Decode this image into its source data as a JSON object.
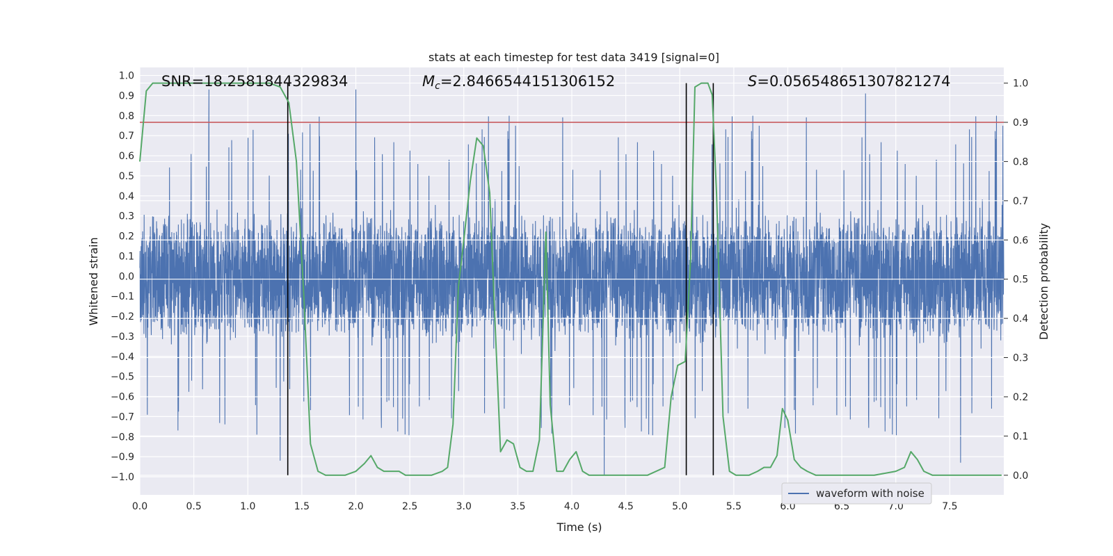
{
  "chart_data": {
    "type": "line",
    "title": "stats at each timestep for test data 3419 [signal=0]",
    "xlabel": "Time (s)",
    "ylabel": "Whitened strain",
    "y2label": "Detection probability",
    "xlim": [
      0.0,
      8.0
    ],
    "ylim": [
      -1.09,
      1.04
    ],
    "y2lim": [
      -0.05,
      1.04
    ],
    "xticks": [
      "0.0",
      "0.5",
      "1.0",
      "1.5",
      "2.0",
      "2.5",
      "3.0",
      "3.5",
      "4.0",
      "4.5",
      "5.0",
      "5.5",
      "6.0",
      "6.5",
      "7.0",
      "7.5"
    ],
    "yticks": [
      "1.0",
      "0.9",
      "0.8",
      "0.7",
      "0.6",
      "0.5",
      "0.4",
      "0.3",
      "0.2",
      "0.1",
      "0.0",
      "−0.1",
      "−0.2",
      "−0.3",
      "−0.4",
      "−0.5",
      "−0.6",
      "−0.7",
      "−0.8",
      "−0.9",
      "−1.0"
    ],
    "y2ticks": [
      "1.0",
      "0.9",
      "0.8",
      "0.7",
      "0.6",
      "0.5",
      "0.4",
      "0.3",
      "0.2",
      "0.1",
      "0.0"
    ],
    "annotations": {
      "snr": "SNR=18.2581844329834",
      "mc_symbol": "M",
      "mc_sub": "c",
      "mc_value": "=2.8466544151306152",
      "s_symbol": "S",
      "s_value": "=0.056548651307821274"
    },
    "threshold": {
      "value": 0.9,
      "axis": "y2",
      "color": "#c44e52"
    },
    "vlines": [
      1.37,
      5.06,
      5.31
    ],
    "series": [
      {
        "name": "waveform with noise",
        "color": "#4c72b0",
        "axis": "y1",
        "description": "dense whitened noise, band approx -0.4..0.4 with spikes to about +/-0.95",
        "peaks": [
          [
            0.64,
            0.93
          ],
          [
            2.0,
            0.93
          ],
          [
            6.72,
            0.91
          ],
          [
            1.3,
            -0.92
          ],
          [
            4.3,
            -0.99
          ],
          [
            7.6,
            -0.93
          ]
        ]
      },
      {
        "name": "Detection probability",
        "color": "#55a868",
        "axis": "y2",
        "x": [
          0.0,
          0.06,
          0.12,
          0.2,
          0.4,
          0.6,
          0.8,
          1.0,
          1.2,
          1.3,
          1.38,
          1.45,
          1.52,
          1.58,
          1.65,
          1.72,
          1.8,
          1.9,
          2.0,
          2.08,
          2.14,
          2.2,
          2.26,
          2.33,
          2.4,
          2.46,
          2.52,
          2.6,
          2.7,
          2.8,
          2.85,
          2.9,
          2.95,
          3.0,
          3.06,
          3.12,
          3.18,
          3.24,
          3.28,
          3.34,
          3.4,
          3.46,
          3.52,
          3.58,
          3.64,
          3.7,
          3.76,
          3.8,
          3.86,
          3.92,
          3.98,
          4.04,
          4.1,
          4.16,
          4.22,
          4.3,
          4.4,
          4.5,
          4.7,
          4.86,
          4.92,
          4.98,
          5.05,
          5.1,
          5.14,
          5.2,
          5.26,
          5.3,
          5.34,
          5.4,
          5.46,
          5.52,
          5.58,
          5.64,
          5.72,
          5.78,
          5.84,
          5.9,
          5.95,
          6.0,
          6.06,
          6.12,
          6.18,
          6.26,
          6.34,
          6.45,
          6.6,
          6.8,
          7.0,
          7.08,
          7.14,
          7.2,
          7.26,
          7.34,
          7.5,
          7.7,
          7.9,
          7.98
        ],
        "y": [
          0.8,
          0.98,
          1.0,
          1.0,
          1.0,
          1.0,
          1.0,
          1.0,
          1.0,
          0.99,
          0.95,
          0.8,
          0.45,
          0.08,
          0.01,
          0.0,
          0.0,
          0.0,
          0.01,
          0.03,
          0.05,
          0.02,
          0.01,
          0.01,
          0.01,
          0.0,
          0.0,
          0.0,
          0.0,
          0.01,
          0.02,
          0.13,
          0.48,
          0.6,
          0.75,
          0.86,
          0.84,
          0.72,
          0.45,
          0.06,
          0.09,
          0.08,
          0.02,
          0.01,
          0.01,
          0.09,
          0.62,
          0.18,
          0.01,
          0.01,
          0.04,
          0.06,
          0.01,
          0.0,
          0.0,
          0.0,
          0.0,
          0.0,
          0.0,
          0.02,
          0.2,
          0.28,
          0.29,
          0.55,
          0.99,
          1.0,
          1.0,
          0.97,
          0.72,
          0.15,
          0.01,
          0.0,
          0.0,
          0.0,
          0.01,
          0.02,
          0.02,
          0.05,
          0.17,
          0.14,
          0.04,
          0.02,
          0.01,
          0.0,
          0.0,
          0.0,
          0.0,
          0.0,
          0.01,
          0.02,
          0.06,
          0.04,
          0.01,
          0.0,
          0.0,
          0.0,
          0.0,
          0.0
        ]
      }
    ],
    "legend": {
      "position": "bottom-center-right",
      "label": "waveform with noise"
    }
  }
}
